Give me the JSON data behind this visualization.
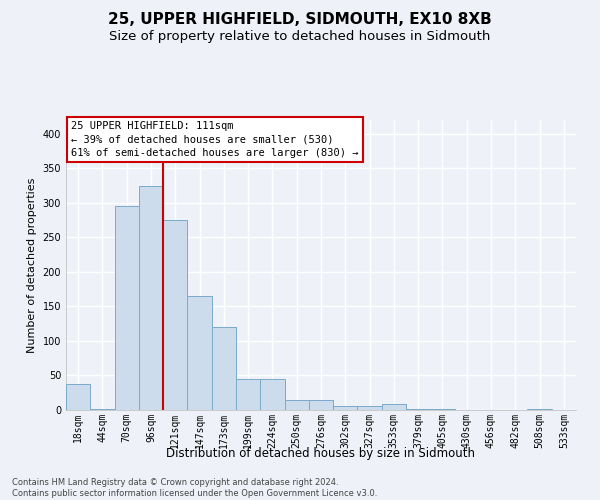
{
  "title": "25, UPPER HIGHFIELD, SIDMOUTH, EX10 8XB",
  "subtitle": "Size of property relative to detached houses in Sidmouth",
  "xlabel": "Distribution of detached houses by size in Sidmouth",
  "ylabel": "Number of detached properties",
  "bar_labels": [
    "18sqm",
    "44sqm",
    "70sqm",
    "96sqm",
    "121sqm",
    "147sqm",
    "173sqm",
    "199sqm",
    "224sqm",
    "250sqm",
    "276sqm",
    "302sqm",
    "327sqm",
    "353sqm",
    "379sqm",
    "405sqm",
    "430sqm",
    "456sqm",
    "482sqm",
    "508sqm",
    "533sqm"
  ],
  "bar_values": [
    37,
    2,
    295,
    325,
    275,
    165,
    120,
    45,
    45,
    15,
    15,
    6,
    6,
    8,
    2,
    2,
    0,
    0,
    0,
    2,
    0
  ],
  "bar_color": "#ccdcec",
  "bar_edge_color": "#7aaaca",
  "vline_x": 3.5,
  "vline_color": "#cc0000",
  "annotation_text": "25 UPPER HIGHFIELD: 111sqm\n← 39% of detached houses are smaller (530)\n61% of semi-detached houses are larger (830) →",
  "annotation_box_facecolor": "white",
  "annotation_box_edgecolor": "#cc0000",
  "ylim_max": 420,
  "yticks": [
    0,
    50,
    100,
    150,
    200,
    250,
    300,
    350,
    400
  ],
  "footer": "Contains HM Land Registry data © Crown copyright and database right 2024.\nContains public sector information licensed under the Open Government Licence v3.0.",
  "bg_color": "#eef2f8",
  "grid_color": "#ffffff",
  "title_fontsize": 11,
  "subtitle_fontsize": 9.5,
  "xlabel_fontsize": 8.5,
  "ylabel_fontsize": 8,
  "tick_fontsize": 7,
  "annot_fontsize": 7.5
}
